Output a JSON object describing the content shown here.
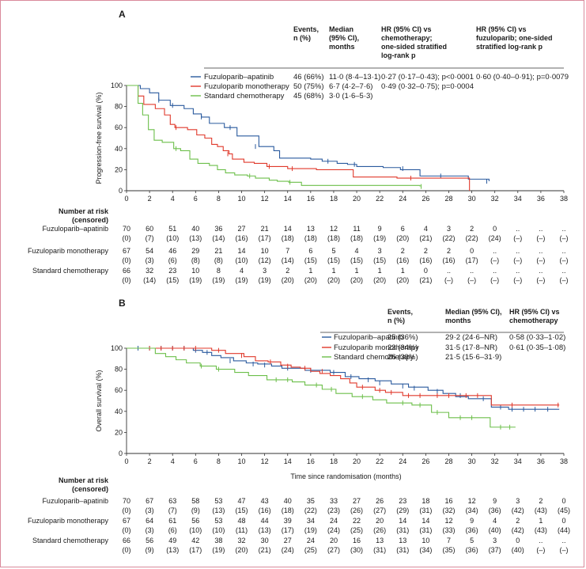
{
  "colors": {
    "apatinib": "#2a5a9e",
    "mono": "#e0392b",
    "chemo": "#6cbf4a",
    "axis": "#333333"
  },
  "panels": [
    {
      "id": "A",
      "letter": "A",
      "chart_data": {
        "type": "line",
        "ylabel": "Progression-free survival (%)",
        "xlabel": "",
        "ylim": [
          0,
          100
        ],
        "xlim": [
          0,
          38
        ],
        "yticks": [
          0,
          20,
          40,
          60,
          80,
          100
        ],
        "xticks": [
          0,
          2,
          4,
          6,
          8,
          10,
          12,
          14,
          16,
          18,
          20,
          22,
          24,
          26,
          28,
          30,
          32,
          34,
          36,
          38
        ],
        "series": [
          {
            "name": "Fuzuloparib–apatinib",
            "color": "#2a5a9e",
            "x": [
              0,
              1.2,
              2,
              2.8,
              3.8,
              5,
              5.8,
              6.5,
              7.2,
              8.5,
              9.6,
              11.5,
              12.8,
              13.3,
              16,
              17,
              18.3,
              19.2,
              20,
              22.3,
              23.8,
              25.5,
              29.7,
              31.5
            ],
            "y": [
              100,
              97,
              93,
              86,
              81,
              78,
              73,
              70,
              64,
              60,
              52,
              42,
              38,
              31,
              30,
              28,
              26,
              25,
              23,
              22,
              20,
              14,
              11,
              9
            ],
            "censor_x": [
              2.8,
              4,
              6.5,
              9,
              11.2,
              17.5,
              19.8,
              24,
              27.3,
              31.3
            ],
            "censor_y": [
              86,
              81,
              70,
              60,
              42,
              28,
              25,
              21,
              14,
              9
            ]
          },
          {
            "name": "Fuzuloparib monotherapy",
            "color": "#e0392b",
            "x": [
              0,
              1,
              1.5,
              2.5,
              3.3,
              3.8,
              4.2,
              5.3,
              6.1,
              6.8,
              7.4,
              7.9,
              8.4,
              8.9,
              9.2,
              10.2,
              11.1,
              12.2,
              14,
              16.5,
              19.7,
              23.5,
              29.8
            ],
            "y": [
              100,
              90,
              82,
              78,
              72,
              63,
              60,
              58,
              53,
              50,
              44,
              42,
              38,
              35,
              30,
              27,
              26,
              23,
              21,
              20,
              13,
              12,
              0
            ],
            "censor_x": [
              4.3,
              8.8,
              12.4,
              14.4,
              24.7
            ],
            "censor_y": [
              60,
              35,
              23,
              21,
              12
            ]
          },
          {
            "name": "Standard chemotherapy",
            "color": "#6cbf4a",
            "x": [
              0,
              1,
              1.4,
              1.9,
              2.4,
              3.1,
              4.1,
              4.7,
              5.5,
              6.2,
              7.2,
              7.9,
              8.6,
              9.4,
              10.5,
              11.2,
              12.4,
              13.1,
              14.1,
              15.2,
              25.5
            ],
            "y": [
              100,
              83,
              72,
              58,
              48,
              46,
              40,
              38,
              30,
              26,
              24,
              20,
              17,
              15,
              14,
              12,
              10,
              9,
              8,
              5,
              4
            ],
            "censor_x": [
              4.3,
              10.7,
              14.2,
              25.6
            ],
            "censor_y": [
              40,
              14,
              8,
              4
            ]
          }
        ]
      },
      "table_headers": {
        "events": [
          "Events,",
          "n (%)"
        ],
        "median": [
          "Median",
          "(95% CI),",
          "months"
        ],
        "hr": [
          "HR (95% CI) vs",
          "chemotherapy;",
          "one-sided stratified",
          "log-rank p"
        ],
        "hr2": [
          "HR (95% CI) vs",
          "fuzuloparib; one-sided",
          "stratified log-rank p"
        ]
      },
      "table_rows": [
        {
          "name": "Fuzuloparib–apatinib",
          "events": "46 (66%)",
          "median": "11·0 (8·4–13·1)",
          "hr": "0·27 (0·17–0·43); p<0·0001",
          "hr2": "0·60 (0·40–0·91); p=0·0079"
        },
        {
          "name": "Fuzuloparib monotherapy",
          "events": "50 (75%)",
          "median": "6·7 (4·2–7·6)",
          "hr": "0·49 (0·32–0·75); p=0·0004",
          "hr2": ""
        },
        {
          "name": "Standard chemotherapy",
          "events": "45 (68%)",
          "median": "3·0 (1·6–5·3)",
          "hr": "",
          "hr2": ""
        }
      ],
      "risk_title": [
        "Number at risk",
        "(censored)"
      ],
      "risk": [
        {
          "name": "Fuzuloparib–apatinib",
          "n": [
            "70",
            "60",
            "51",
            "40",
            "36",
            "27",
            "21",
            "14",
            "13",
            "12",
            "11",
            "9",
            "6",
            "4",
            "3",
            "2",
            "0",
            "..",
            "..",
            ".."
          ],
          "c": [
            "(0)",
            "(7)",
            "(10)",
            "(13)",
            "(14)",
            "(16)",
            "(17)",
            "(18)",
            "(18)",
            "(18)",
            "(18)",
            "(19)",
            "(20)",
            "(21)",
            "(22)",
            "(22)",
            "(24)",
            "(–)",
            "(–)",
            "(–)"
          ]
        },
        {
          "name": "Fuzuloparib monotherapy",
          "n": [
            "67",
            "54",
            "46",
            "29",
            "21",
            "14",
            "10",
            "7",
            "6",
            "5",
            "4",
            "3",
            "2",
            "2",
            "2",
            "0",
            "..",
            "..",
            "..",
            ".."
          ],
          "c": [
            "(0)",
            "(3)",
            "(6)",
            "(8)",
            "(8)",
            "(10)",
            "(12)",
            "(14)",
            "(15)",
            "(15)",
            "(15)",
            "(15)",
            "(16)",
            "(16)",
            "(16)",
            "(17)",
            "(–)",
            "(–)",
            "(–)",
            "(–)"
          ]
        },
        {
          "name": "Standard chemotherapy",
          "n": [
            "66",
            "32",
            "23",
            "10",
            "8",
            "4",
            "3",
            "2",
            "1",
            "1",
            "1",
            "1",
            "1",
            "0",
            "..",
            "..",
            "..",
            "..",
            "..",
            ".."
          ],
          "c": [
            "(0)",
            "(14)",
            "(15)",
            "(19)",
            "(19)",
            "(19)",
            "(19)",
            "(20)",
            "(20)",
            "(20)",
            "(20)",
            "(20)",
            "(20)",
            "(21)",
            "(–)",
            "(–)",
            "(–)",
            "(–)",
            "(–)",
            "(–)"
          ]
        }
      ]
    },
    {
      "id": "B",
      "letter": "B",
      "chart_data": {
        "type": "line",
        "ylabel": "Overall survival (%)",
        "xlabel": "Time since randomisation (months)",
        "ylim": [
          0,
          100
        ],
        "xlim": [
          0,
          38
        ],
        "yticks": [
          0,
          20,
          40,
          60,
          80,
          100
        ],
        "xticks": [
          0,
          2,
          4,
          6,
          8,
          10,
          12,
          14,
          16,
          18,
          20,
          22,
          24,
          26,
          28,
          30,
          32,
          34,
          36,
          38
        ],
        "series": [
          {
            "name": "Fuzuloparib–apatinib",
            "color": "#2a5a9e",
            "x": [
              0,
              5.8,
              6.6,
              7.4,
              8.2,
              9.3,
              10.4,
              11.4,
              12.6,
              13.5,
              15.5,
              17.7,
              19,
              20.2,
              21.6,
              23,
              24.5,
              26.2,
              27.5,
              28.6,
              29.7,
              31.7,
              33.2,
              37.6
            ],
            "y": [
              100,
              98,
              96,
              93,
              91,
              88,
              86,
              85,
              83,
              81,
              79,
              77,
              73,
              71,
              69,
              66,
              63,
              60,
              57,
              54,
              52,
              44,
              42,
              42
            ],
            "censor_x": [
              1,
              2,
              3,
              4,
              5,
              6,
              7,
              9,
              11,
              12,
              14,
              16,
              18,
              19.5,
              21,
              22,
              24,
              25,
              27,
              29,
              31,
              32.5,
              33.5,
              34.5,
              35.5,
              36.6
            ],
            "censor_y": [
              100,
              100,
              100,
              100,
              100,
              98,
              96,
              88,
              85,
              84,
              81,
              79,
              77,
              73,
              70,
              67,
              64,
              62,
              59,
              55,
              52,
              44,
              42,
              42,
              42,
              42
            ]
          },
          {
            "name": "Fuzuloparib monotherapy",
            "color": "#e0392b",
            "x": [
              0,
              7.4,
              8.6,
              10.2,
              11.2,
              12.3,
              13.4,
              14.3,
              15.1,
              16,
              16.8,
              17.7,
              18.6,
              19.4,
              20,
              21.6,
              22.5,
              24,
              26.8,
              29,
              31.7,
              37.6
            ],
            "y": [
              100,
              98,
              95,
              92,
              88,
              87,
              84,
              82,
              81,
              78,
              76,
              74,
              71,
              67,
              63,
              60,
              58,
              55,
              55,
              55,
              46,
              46
            ],
            "censor_x": [
              2,
              3,
              4,
              5,
              6,
              8,
              10,
              12.5,
              14,
              15.5,
              17,
              20.5,
              22,
              23,
              24.5,
              25.5,
              27,
              28,
              29.5,
              30.5,
              33.5,
              37.5
            ],
            "censor_y": [
              100,
              100,
              100,
              100,
              100,
              98,
              93,
              87,
              83,
              81,
              78,
              63,
              60,
              58,
              55,
              55,
              55,
              55,
              55,
              55,
              46,
              46
            ],
            "end_x": [
              31.7,
              33.8
            ],
            "end_y": [
              46,
              46
            ]
          },
          {
            "name": "Standard chemotherapy",
            "color": "#6cbf4a",
            "x": [
              0,
              2.5,
              3.4,
              4.3,
              5.2,
              6.4,
              7.8,
              9.4,
              10.6,
              12.2,
              14.4,
              15.5,
              17,
              18.2,
              19.6,
              21.4,
              22.6,
              24.8,
              26.5,
              28,
              31.6,
              33.8
            ],
            "y": [
              100,
              95,
              92,
              89,
              86,
              83,
              80,
              77,
              74,
              70,
              68,
              65,
              61,
              57,
              54,
              51,
              48,
              46,
              39,
              34,
              25,
              25
            ],
            "censor_x": [
              6.5,
              8,
              13,
              14,
              16.5,
              17.8,
              20.5,
              24,
              25.5,
              27,
              29,
              30,
              32.5,
              33.3
            ],
            "censor_y": [
              83,
              80,
              70,
              70,
              65,
              61,
              54,
              48,
              46,
              39,
              34,
              34,
              25,
              25
            ]
          }
        ]
      },
      "table_headers": {
        "events": [
          "Events,",
          "n (%)"
        ],
        "median": [
          "Median (95% CI),",
          "months"
        ],
        "hr": [
          "HR (95% CI) vs",
          "chemotherapy"
        ],
        "hr2": []
      },
      "table_rows": [
        {
          "name": "Fuzuloparib–apatinib",
          "events": "25 (36%)",
          "median": "29·2 (24·6–NR)",
          "hr": "0·58 (0·33–1·02)",
          "hr2": ""
        },
        {
          "name": "Fuzuloparib monotherapy",
          "events": "23 (34%)",
          "median": "31·5 (17·8–NR)",
          "hr": "0·61 (0·35–1·08)",
          "hr2": ""
        },
        {
          "name": "Standard chemotherapy",
          "events": "26 (39%)",
          "median": "21·5 (15·6–31·9)",
          "hr": "",
          "hr2": ""
        }
      ],
      "risk_title": [
        "Number at risk",
        "(censored)"
      ],
      "risk": [
        {
          "name": "Fuzuloparib–apatinib",
          "n": [
            "70",
            "67",
            "63",
            "58",
            "53",
            "47",
            "43",
            "40",
            "35",
            "33",
            "27",
            "26",
            "23",
            "18",
            "16",
            "12",
            "9",
            "3",
            "2",
            "0"
          ],
          "c": [
            "(0)",
            "(3)",
            "(7)",
            "(9)",
            "(13)",
            "(15)",
            "(16)",
            "(18)",
            "(22)",
            "(23)",
            "(26)",
            "(27)",
            "(29)",
            "(31)",
            "(32)",
            "(34)",
            "(36)",
            "(42)",
            "(43)",
            "(45)"
          ]
        },
        {
          "name": "Fuzuloparib monotherapy",
          "n": [
            "67",
            "64",
            "61",
            "56",
            "53",
            "48",
            "44",
            "39",
            "34",
            "24",
            "22",
            "20",
            "14",
            "14",
            "12",
            "9",
            "4",
            "2",
            "1",
            "0"
          ],
          "c": [
            "(0)",
            "(3)",
            "(6)",
            "(10)",
            "(10)",
            "(11)",
            "(13)",
            "(17)",
            "(19)",
            "(24)",
            "(25)",
            "(26)",
            "(31)",
            "(31)",
            "(33)",
            "(36)",
            "(40)",
            "(42)",
            "(43)",
            "(44)"
          ]
        },
        {
          "name": "Standard chemotherapy",
          "n": [
            "66",
            "56",
            "49",
            "42",
            "38",
            "32",
            "30",
            "27",
            "24",
            "20",
            "16",
            "13",
            "13",
            "10",
            "7",
            "5",
            "3",
            "0",
            "..",
            ".."
          ],
          "c": [
            "(0)",
            "(9)",
            "(13)",
            "(17)",
            "(19)",
            "(20)",
            "(21)",
            "(24)",
            "(25)",
            "(27)",
            "(30)",
            "(31)",
            "(31)",
            "(34)",
            "(35)",
            "(36)",
            "(37)",
            "(40)",
            "(–)",
            "(–)"
          ]
        }
      ]
    }
  ]
}
